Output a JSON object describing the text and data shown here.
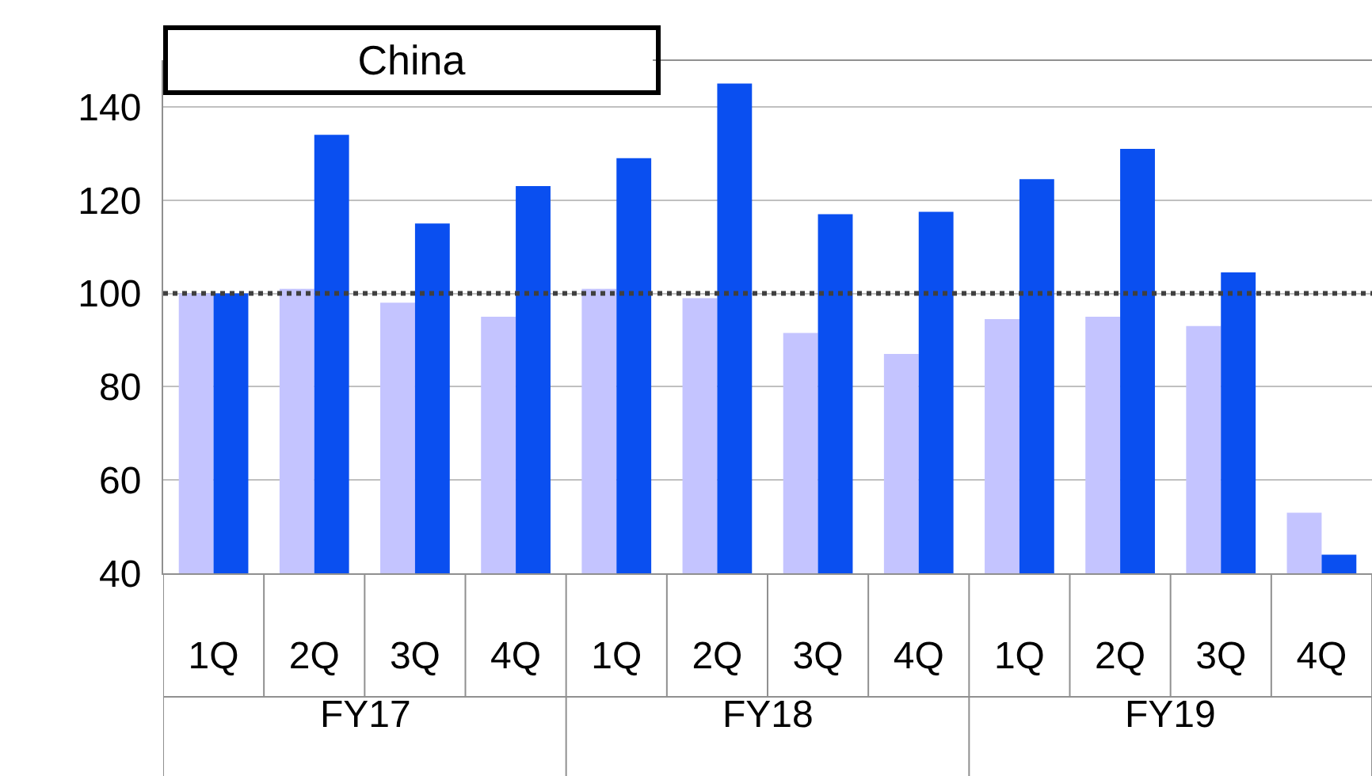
{
  "chart_data": {
    "type": "bar",
    "title": "China",
    "categories": [
      "1Q",
      "2Q",
      "3Q",
      "4Q",
      "1Q",
      "2Q",
      "3Q",
      "4Q",
      "1Q",
      "2Q",
      "3Q",
      "4Q"
    ],
    "series": [
      {
        "color": "#c4c4ff",
        "values": [
          100,
          101,
          98,
          95,
          101,
          99,
          91.5,
          87,
          94.5,
          95,
          93,
          53
        ]
      },
      {
        "color": "#0a4ff0",
        "values": [
          100,
          134,
          115,
          123,
          129,
          145,
          117,
          117.5,
          124.5,
          131,
          104.5,
          44
        ]
      }
    ],
    "annotations": [
      "FY17",
      "FY18",
      "FY19"
    ],
    "ylim": [
      40,
      150
    ],
    "yticks": [
      40,
      60,
      80,
      100,
      120,
      140
    ],
    "ref_lines": [
      {
        "axis": "y",
        "value": 100,
        "color": "#404040",
        "line_style": "dotted"
      }
    ],
    "grid": "y"
  }
}
